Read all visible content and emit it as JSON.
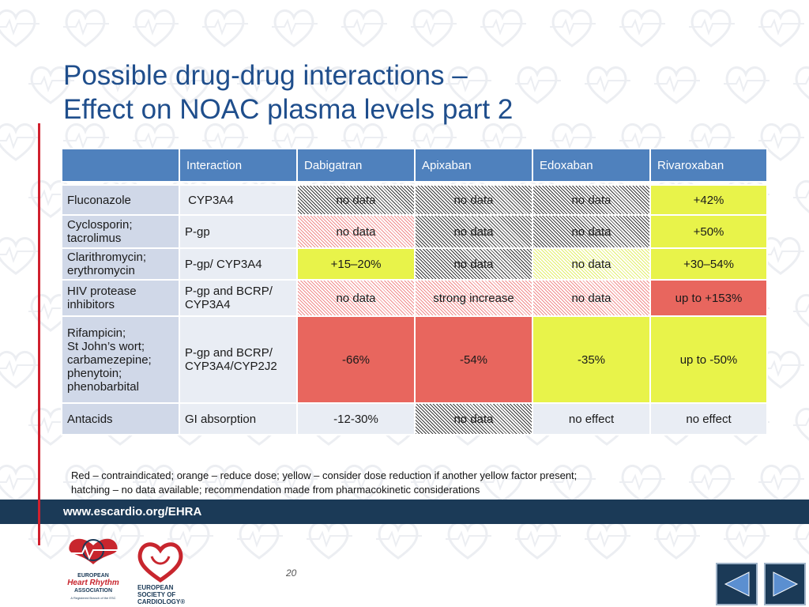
{
  "title": {
    "line1": "Possible drug-drug interactions –",
    "line2": "Effect on NOAC plasma levels part 2"
  },
  "table": {
    "headers": [
      "",
      "Interaction",
      "Dabigatran",
      "Apixaban",
      "Edoxaban",
      "Rivaroxaban"
    ],
    "rows": [
      {
        "drug": [
          "Fluconazole"
        ],
        "mechanism": " CYP3A4",
        "cells": [
          {
            "text": "no data",
            "fill": "hatched-grey"
          },
          {
            "text": "no data",
            "fill": "hatched-grey"
          },
          {
            "text": "no data",
            "fill": "hatched-grey"
          },
          {
            "text": "+42%",
            "fill": "yellow"
          }
        ]
      },
      {
        "drug": [
          "Cyclosporin;",
          "tacrolimus"
        ],
        "mechanism": "P-gp",
        "cells": [
          {
            "text": "no data",
            "fill": "hatched-red"
          },
          {
            "text": "no data",
            "fill": "hatched-grey"
          },
          {
            "text": "no data",
            "fill": "hatched-grey"
          },
          {
            "text": "+50%",
            "fill": "yellow"
          }
        ]
      },
      {
        "drug": [
          "Clarithromycin;",
          "erythromycin"
        ],
        "mechanism": "P-gp/ CYP3A4",
        "cells": [
          {
            "text": "+15–20%",
            "fill": "yellow"
          },
          {
            "text": "no data",
            "fill": "hatched-grey"
          },
          {
            "text": "no data",
            "fill": "hatched-yellow"
          },
          {
            "text": "+30–54%",
            "fill": "yellow"
          }
        ]
      },
      {
        "drug": [
          "HIV protease",
          "inhibitors"
        ],
        "mechanism": "P-gp and BCRP/ CYP3A4",
        "cells": [
          {
            "text": "no data",
            "fill": "hatched-red"
          },
          {
            "text": "strong increase",
            "fill": "hatched-red"
          },
          {
            "text": "no data",
            "fill": "hatched-red"
          },
          {
            "text": "up to +153%",
            "fill": "red"
          }
        ]
      },
      {
        "drug": [
          "Rifampicin;",
          "St John’s wort;",
          "carbamezepine;",
          "phenytoin;",
          "phenobarbital"
        ],
        "mechanism": "P-gp and BCRP/ CYP3A4/CYP2J2",
        "cells": [
          {
            "text": "-66%",
            "fill": "red"
          },
          {
            "text": "-54%",
            "fill": "red"
          },
          {
            "text": "-35%",
            "fill": "yellow"
          },
          {
            "text": "up to -50%",
            "fill": "yellow"
          }
        ]
      },
      {
        "drug": [
          "Antacids"
        ],
        "mechanism": "GI absorption",
        "cells": [
          {
            "text": "-12-30%",
            "fill": "white"
          },
          {
            "text": "no data",
            "fill": "hatched-grey"
          },
          {
            "text": "no effect",
            "fill": "white"
          },
          {
            "text": "no effect",
            "fill": "white"
          }
        ]
      }
    ]
  },
  "legend": {
    "line1": "Red – contraindicated; orange – reduce dose; yellow – consider dose reduction if another yellow factor present;",
    "line2": "hatching – no data available; recommendation made from pharmacokinetic considerations"
  },
  "footer": {
    "url": "www.escardio.org/EHRA"
  },
  "logos": {
    "ehra": [
      "EUROPEAN",
      "Heart Rhythm",
      "ASSOCIATION",
      "A Registered Branch of the ESC"
    ],
    "esc": [
      "EUROPEAN",
      "SOCIETY OF",
      "CARDIOLOGY®"
    ]
  },
  "page_number": "20",
  "nav": {
    "prev_icon": "triangle-left-icon",
    "next_icon": "triangle-right-icon"
  },
  "colors": {
    "header": "#4f81bd",
    "red": "#e8665e",
    "yellow": "#e8f34a",
    "footer": "#1b3a57",
    "title": "#1f4e8c",
    "accent_line": "#d0202e"
  }
}
